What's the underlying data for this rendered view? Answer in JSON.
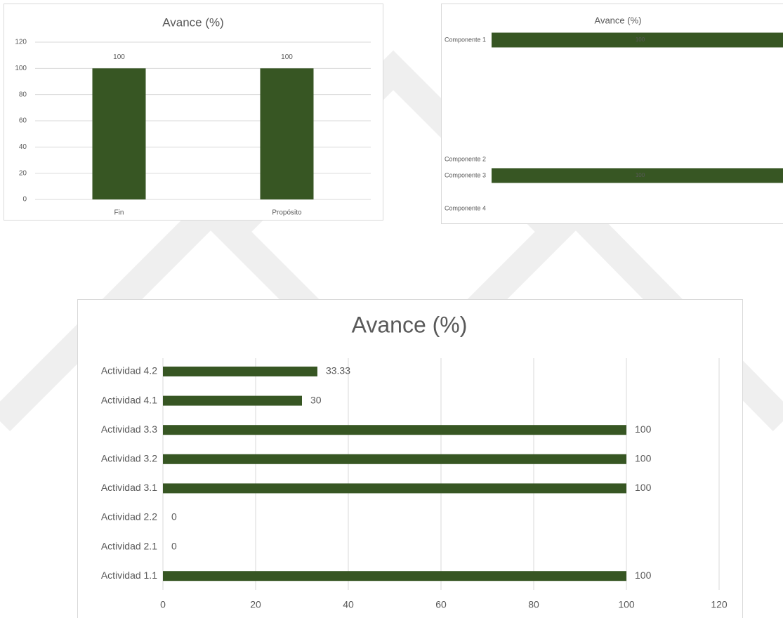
{
  "chart_data": [
    {
      "type": "bar",
      "title": "Avance (%)",
      "categories": [
        "Fin",
        "Propósito"
      ],
      "values": [
        100,
        100
      ],
      "color": "#375623",
      "ylim": [
        0,
        120
      ],
      "yticks": [
        0,
        20,
        40,
        60,
        80,
        100,
        120
      ],
      "grid": true,
      "data_labels": true
    },
    {
      "type": "hbar",
      "title": "Avance (%)",
      "categories": [
        "Componente 1",
        "Componente 2",
        "Componente 3",
        "Componente 4"
      ],
      "values": [
        100,
        null,
        100,
        null
      ],
      "color": "#375623",
      "xlim": [
        0,
        100
      ],
      "grid": false,
      "data_labels": true
    },
    {
      "type": "hbar",
      "title": "Avance (%)",
      "categories": [
        "Actividad 4.2",
        "Actividad 4.1",
        "Actividad 3.3",
        "Actividad 3.2",
        "Actividad 3.1",
        "Actividad 2.2",
        "Actividad 2.1",
        "Actividad 1.1"
      ],
      "values": [
        33.33,
        30,
        100,
        100,
        100,
        0,
        0,
        100
      ],
      "color": "#375623",
      "xlim": [
        0,
        120
      ],
      "xticks": [
        0,
        20,
        40,
        60,
        80,
        100,
        120
      ],
      "grid": true,
      "data_labels": true
    }
  ]
}
